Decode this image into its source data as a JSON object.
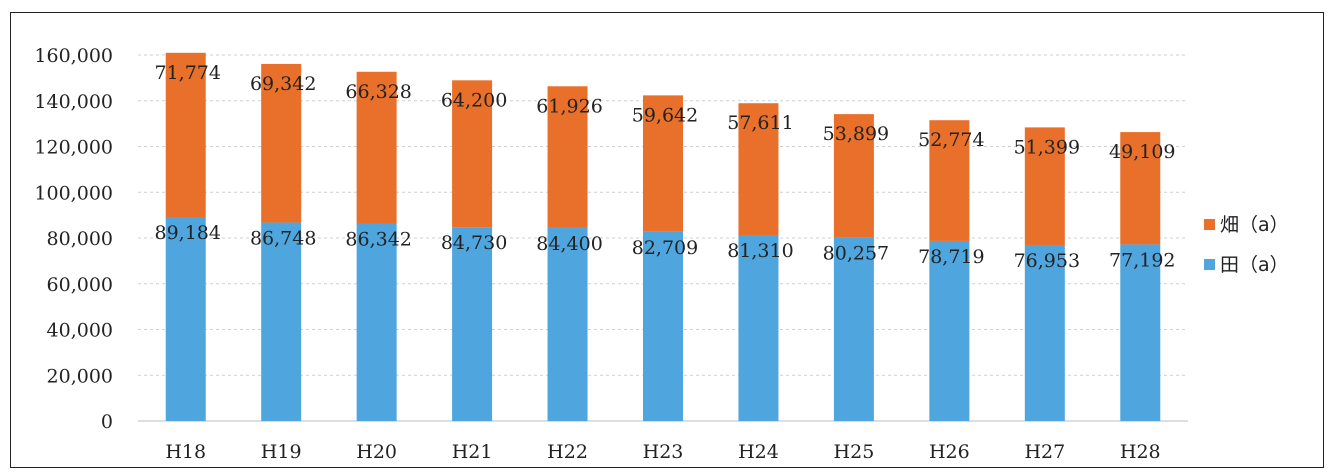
{
  "chart_data": {
    "type": "bar",
    "stacked": true,
    "categories": [
      "H18",
      "H19",
      "H20",
      "H21",
      "H22",
      "H23",
      "H24",
      "H25",
      "H26",
      "H27",
      "H28"
    ],
    "series": [
      {
        "name": "田（a）",
        "color": "#4fa6de",
        "values": [
          89184,
          86748,
          86342,
          84730,
          84400,
          82709,
          81310,
          80257,
          78719,
          76953,
          77192
        ],
        "labels": [
          "89,184",
          "86,748",
          "86,342",
          "84,730",
          "84,400",
          "82,709",
          "81,310",
          "80,257",
          "78,719",
          "76,953",
          "77,192"
        ]
      },
      {
        "name": "畑（a）",
        "color": "#e8702a",
        "values": [
          71774,
          69342,
          66328,
          64200,
          61926,
          59642,
          57611,
          53899,
          52774,
          51399,
          49109
        ],
        "labels": [
          "71,774",
          "69,342",
          "66,328",
          "64,200",
          "61,926",
          "59,642",
          "57,611",
          "53,899",
          "52,774",
          "51,399",
          "49,109"
        ]
      }
    ],
    "ylim": [
      0,
      160000
    ],
    "yticks": [
      0,
      20000,
      40000,
      60000,
      80000,
      100000,
      120000,
      140000,
      160000
    ],
    "ytick_labels": [
      "0",
      "20,000",
      "40,000",
      "60,000",
      "80,000",
      "100,000",
      "120,000",
      "140,000",
      "160,000"
    ],
    "grid": true,
    "legend_position": "right",
    "legend_order": [
      "畑（a）",
      "田（a）"
    ]
  }
}
